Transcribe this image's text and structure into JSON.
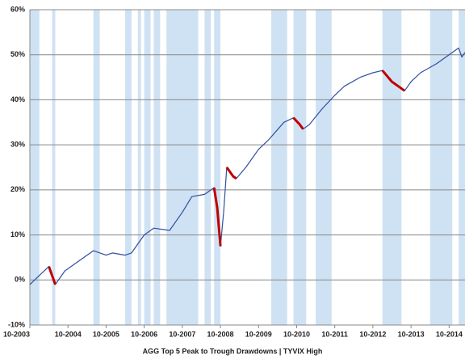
{
  "chart_data": {
    "type": "line",
    "title": "AGG Top 5 Peak to Trough Drawdowns  | TYVIX High",
    "x": [
      "10-2003",
      "01-2004",
      "04-2004",
      "05-2004",
      "06-2004",
      "09-2004",
      "01-2005",
      "06-2005",
      "10-2005",
      "12-2005",
      "04-2006",
      "06-2006",
      "10-2006",
      "01-2007",
      "06-2007",
      "10-2007",
      "01-2008",
      "05-2008",
      "08-2008",
      "09-2008",
      "10-2008",
      "11-2008",
      "12-2008",
      "02-2009",
      "03-2009",
      "06-2009",
      "10-2009",
      "01-2010",
      "06-2010",
      "09-2010",
      "11-2010",
      "12-2010",
      "02-2011",
      "06-2011",
      "10-2011",
      "01-2012",
      "06-2012",
      "10-2012",
      "01-2013",
      "04-2013",
      "06-2013",
      "08-2013",
      "10-2013",
      "01-2014",
      "06-2014",
      "09-2014",
      "12-2014",
      "01-2015",
      "02-2015",
      "03-2015"
    ],
    "series": [
      {
        "color": "#2f4f9f",
        "values": [
          -1,
          1,
          3,
          1,
          -1,
          2,
          4,
          6.5,
          5.5,
          6,
          5.5,
          6,
          10,
          11.5,
          11,
          15,
          18.5,
          19,
          20.5,
          16,
          7.5,
          15,
          25,
          23,
          22.5,
          25,
          29,
          31,
          35,
          36,
          34.5,
          33.5,
          34.5,
          38,
          41,
          43,
          45,
          46,
          46.5,
          44,
          43,
          42,
          44,
          46,
          48,
          49.5,
          51,
          51.5,
          49.5,
          50.5
        ]
      },
      {
        "color": "#c00000",
        "values": [
          null,
          null,
          3,
          1,
          -1,
          null,
          null,
          null,
          null,
          null,
          null,
          null,
          null,
          null,
          null,
          null,
          null,
          null,
          20.5,
          16,
          7.5,
          null,
          25,
          23,
          22.5,
          null,
          null,
          null,
          null,
          36,
          34.5,
          33.5,
          null,
          null,
          null,
          null,
          null,
          null,
          46.5,
          44,
          43,
          42,
          null,
          null,
          null,
          null,
          null,
          null,
          null,
          null
        ]
      }
    ],
    "shaded_regions": [
      [
        "10-2003",
        "01-2004"
      ],
      [
        "05-2004",
        "06-2004"
      ],
      [
        "06-2005",
        "08-2005"
      ],
      [
        "04-2006",
        "06-2006"
      ],
      [
        "08-2006",
        "09-2006"
      ],
      [
        "10-2006",
        "12-2006"
      ],
      [
        "01-2007",
        "03-2007"
      ],
      [
        "05-2007",
        "03-2008"
      ],
      [
        "05-2008",
        "07-2008"
      ],
      [
        "08-2008",
        "10-2008"
      ],
      [
        "02-2010",
        "07-2010"
      ],
      [
        "09-2010",
        "01-2011"
      ],
      [
        "04-2011",
        "09-2011"
      ],
      [
        "01-2013",
        "07-2013"
      ],
      [
        "04-2014",
        "11-2014"
      ],
      [
        "01-2015",
        "03-2015"
      ]
    ],
    "shade_color": "#cfe2f3",
    "xlim": [
      "10-2003",
      "03-2015"
    ],
    "xticks": [
      "10-2003",
      "10-2004",
      "10-2005",
      "10-2006",
      "10-2007",
      "10-2008",
      "10-2009",
      "10-2010",
      "10-2011",
      "10-2012",
      "10-2013",
      "10-2014"
    ],
    "ylim": [
      -10,
      60
    ],
    "yticks": [
      {
        "value": -10,
        "label": "-10%"
      },
      {
        "value": 0,
        "label": "0%"
      },
      {
        "value": 10,
        "label": "10%"
      },
      {
        "value": 20,
        "label": "20%"
      },
      {
        "value": 30,
        "label": "30%"
      },
      {
        "value": 40,
        "label": "40%"
      },
      {
        "value": 50,
        "label": "50%"
      },
      {
        "value": 60,
        "label": "60%"
      }
    ],
    "grid": true
  }
}
